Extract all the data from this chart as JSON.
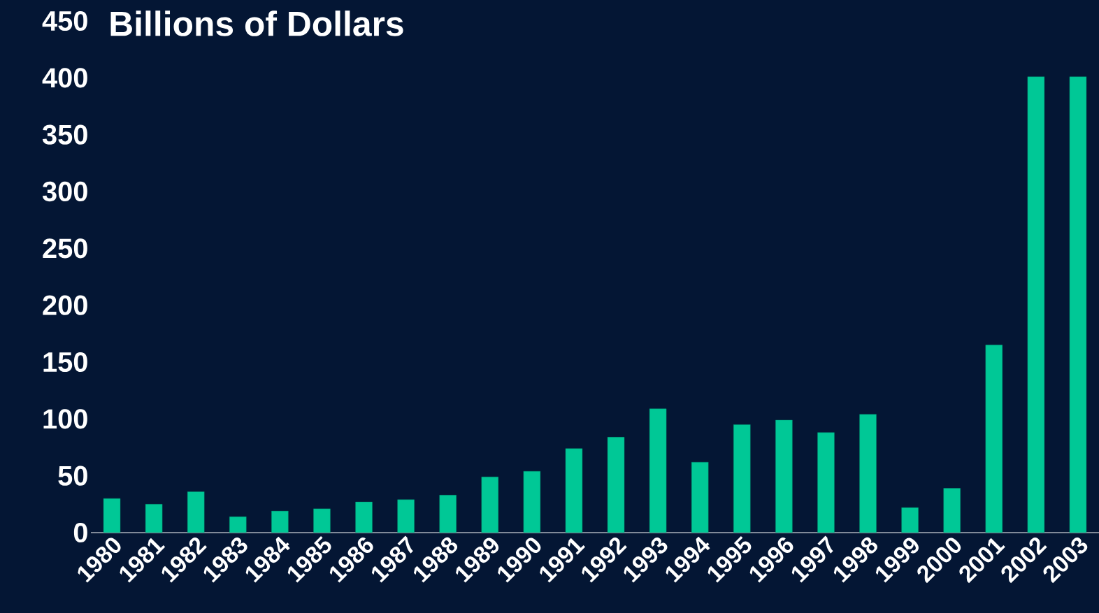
{
  "chart_data": {
    "type": "bar",
    "title": "Billions of Dollars",
    "categories": [
      "1980",
      "1981",
      "1982",
      "1983",
      "1984",
      "1985",
      "1986",
      "1987",
      "1988",
      "1989",
      "1990",
      "1991",
      "1992",
      "1993",
      "1994",
      "1995",
      "1996",
      "1997",
      "1998",
      "1999",
      "2000",
      "2001",
      "2002",
      "2003"
    ],
    "values": [
      30,
      25,
      36,
      14,
      19,
      21,
      27,
      29,
      33,
      49,
      54,
      74,
      84,
      109,
      62,
      95,
      99,
      88,
      104,
      22,
      39,
      165,
      401,
      401
    ],
    "color": "#00c896",
    "ylim": [
      0,
      450
    ],
    "yticks": [
      0,
      50,
      100,
      150,
      200,
      250,
      300,
      350,
      400,
      450
    ]
  }
}
